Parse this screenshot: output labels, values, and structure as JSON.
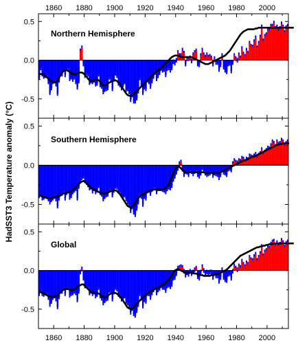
{
  "chart_data": {
    "type": "bar",
    "ylabel": "HadSST3  Temperature anomaly (°C)",
    "x_ticks": [
      1860,
      1880,
      1900,
      1920,
      1940,
      1960,
      1980,
      2000
    ],
    "y_ticks": [
      -0.5,
      0.0,
      0.5
    ],
    "xlim": [
      1850,
      2014
    ],
    "ylim": [
      -0.75,
      0.6
    ],
    "colors": {
      "positive": "#ff0000",
      "negative": "#0000ff",
      "smooth": "#000000",
      "uncertainty": "#0000ff"
    },
    "years_start": 1850,
    "panels": [
      {
        "title": "Northern Hemisphere",
        "annual_anomaly": [
          -0.22,
          -0.1,
          -0.18,
          -0.21,
          -0.2,
          -0.19,
          -0.28,
          -0.42,
          -0.36,
          -0.28,
          -0.26,
          -0.31,
          -0.43,
          -0.26,
          -0.18,
          -0.18,
          -0.12,
          -0.19,
          -0.1,
          -0.1,
          -0.24,
          -0.22,
          -0.25,
          -0.22,
          -0.28,
          -0.35,
          -0.27,
          0.12,
          0.16,
          -0.05,
          -0.2,
          -0.16,
          -0.18,
          -0.29,
          -0.27,
          -0.28,
          -0.26,
          -0.31,
          -0.3,
          -0.18,
          -0.32,
          -0.34,
          -0.41,
          -0.38,
          -0.37,
          -0.36,
          -0.22,
          -0.24,
          -0.37,
          -0.25,
          -0.17,
          -0.2,
          -0.3,
          -0.32,
          -0.36,
          -0.32,
          -0.28,
          -0.38,
          -0.37,
          -0.41,
          -0.51,
          -0.45,
          -0.53,
          -0.53,
          -0.49,
          -0.4,
          -0.23,
          -0.32,
          -0.42,
          -0.35,
          -0.37,
          -0.26,
          -0.28,
          -0.34,
          -0.27,
          -0.21,
          -0.16,
          -0.24,
          -0.2,
          -0.16,
          -0.11,
          -0.13,
          -0.12,
          -0.19,
          -0.11,
          -0.1,
          -0.13,
          -0.1,
          -0.02,
          -0.04,
          0.0,
          0.1,
          0.06,
          0.06,
          0.13,
          0.09,
          -0.05,
          0.02,
          0.02,
          0.03,
          -0.01,
          0.07,
          0.1,
          0.12,
          -0.05,
          -0.06,
          0.06,
          0.13,
          0.07,
          0.04,
          0.07,
          0.04,
          0.05,
          0.03,
          -0.05,
          0.02,
          -0.03,
          -0.03,
          -0.12,
          -0.06,
          0.06,
          -0.09,
          -0.13,
          -0.15,
          -0.05,
          -0.04,
          -0.14,
          -0.03,
          0.06,
          0.02,
          0.0,
          0.07,
          0.03,
          0.15,
          0.08,
          0.05,
          0.13,
          0.09,
          0.22,
          0.18,
          0.17,
          0.24,
          0.29,
          0.16,
          0.22,
          0.3,
          0.43,
          0.25,
          0.31,
          0.33,
          0.39,
          0.38,
          0.44,
          0.44,
          0.48,
          0.41,
          0.43,
          0.38,
          0.41,
          0.47,
          0.43,
          0.36,
          0.42,
          0.44
        ],
        "smoothed": [
          -0.18,
          -0.18,
          -0.18,
          -0.19,
          -0.21,
          -0.22,
          -0.24,
          -0.26,
          -0.27,
          -0.28,
          -0.29,
          -0.28,
          -0.26,
          -0.23,
          -0.19,
          -0.16,
          -0.14,
          -0.13,
          -0.13,
          -0.14,
          -0.15,
          -0.17,
          -0.18,
          -0.18,
          -0.18,
          -0.17,
          -0.16,
          -0.16,
          -0.16,
          -0.17,
          -0.19,
          -0.21,
          -0.24,
          -0.26,
          -0.27,
          -0.27,
          -0.26,
          -0.25,
          -0.25,
          -0.26,
          -0.28,
          -0.31,
          -0.33,
          -0.33,
          -0.32,
          -0.3,
          -0.29,
          -0.28,
          -0.27,
          -0.26,
          -0.26,
          -0.27,
          -0.29,
          -0.31,
          -0.34,
          -0.37,
          -0.4,
          -0.43,
          -0.45,
          -0.46,
          -0.46,
          -0.45,
          -0.44,
          -0.42,
          -0.4,
          -0.38,
          -0.36,
          -0.34,
          -0.32,
          -0.3,
          -0.28,
          -0.26,
          -0.24,
          -0.22,
          -0.2,
          -0.18,
          -0.16,
          -0.14,
          -0.13,
          -0.12,
          -0.1,
          -0.08,
          -0.06,
          -0.04,
          -0.02,
          0.0,
          0.02,
          0.04,
          0.05,
          0.06,
          0.06,
          0.06,
          0.05,
          0.04,
          0.04,
          0.04,
          0.04,
          0.04,
          0.04,
          0.04,
          0.04,
          0.03,
          0.02,
          0.01,
          0.0,
          -0.01,
          -0.02,
          -0.03,
          -0.04,
          -0.05,
          -0.05,
          -0.05,
          -0.04,
          -0.03,
          -0.02,
          -0.01,
          0.0,
          0.01,
          0.02,
          0.03,
          0.04,
          0.05,
          0.06,
          0.08,
          0.1,
          0.12,
          0.15,
          0.18,
          0.21,
          0.24,
          0.27,
          0.3,
          0.33,
          0.35,
          0.37,
          0.38,
          0.39,
          0.4,
          0.4,
          0.4,
          0.4,
          0.4,
          0.41,
          0.41,
          0.42,
          0.42,
          0.42,
          0.42,
          0.42,
          0.42,
          0.42,
          0.42,
          0.42,
          0.42,
          0.42,
          0.42,
          0.42,
          0.42,
          0.42,
          0.42,
          0.42,
          0.42,
          0.42,
          0.42,
          0.42,
          0.42,
          0.42,
          0.42
        ]
      },
      {
        "title": "Southern Hemisphere",
        "annual_anomaly": [
          -0.39,
          -0.37,
          -0.42,
          -0.41,
          -0.38,
          -0.4,
          -0.43,
          -0.47,
          -0.44,
          -0.42,
          -0.4,
          -0.43,
          -0.52,
          -0.42,
          -0.37,
          -0.36,
          -0.33,
          -0.42,
          -0.35,
          -0.33,
          -0.41,
          -0.39,
          -0.34,
          -0.32,
          -0.3,
          -0.42,
          -0.27,
          -0.2,
          -0.16,
          -0.14,
          -0.2,
          -0.22,
          -0.25,
          -0.29,
          -0.28,
          -0.33,
          -0.3,
          -0.34,
          -0.32,
          -0.26,
          -0.35,
          -0.37,
          -0.43,
          -0.4,
          -0.38,
          -0.37,
          -0.3,
          -0.31,
          -0.38,
          -0.32,
          -0.27,
          -0.28,
          -0.33,
          -0.34,
          -0.38,
          -0.4,
          -0.38,
          -0.43,
          -0.47,
          -0.51,
          -0.58,
          -0.53,
          -0.6,
          -0.63,
          -0.55,
          -0.47,
          -0.36,
          -0.4,
          -0.5,
          -0.4,
          -0.42,
          -0.33,
          -0.32,
          -0.36,
          -0.31,
          -0.28,
          -0.28,
          -0.34,
          -0.3,
          -0.3,
          -0.3,
          -0.31,
          -0.32,
          -0.34,
          -0.3,
          -0.28,
          -0.29,
          -0.26,
          -0.18,
          -0.14,
          -0.09,
          -0.04,
          0.02,
          0.04,
          -0.05,
          -0.12,
          -0.08,
          -0.09,
          -0.12,
          -0.06,
          -0.08,
          -0.11,
          -0.08,
          -0.06,
          -0.12,
          -0.14,
          -0.1,
          -0.03,
          -0.07,
          -0.1,
          -0.12,
          -0.11,
          -0.1,
          -0.08,
          -0.13,
          -0.1,
          -0.11,
          -0.12,
          -0.16,
          -0.12,
          -0.04,
          -0.09,
          -0.1,
          -0.12,
          -0.05,
          -0.04,
          -0.06,
          0.02,
          0.06,
          0.04,
          0.03,
          0.06,
          0.05,
          0.09,
          0.08,
          0.05,
          0.08,
          0.07,
          0.12,
          0.11,
          0.1,
          0.12,
          0.14,
          0.1,
          0.13,
          0.15,
          0.2,
          0.14,
          0.17,
          0.19,
          0.22,
          0.21,
          0.25,
          0.3,
          0.28,
          0.24,
          0.3,
          0.27,
          0.28,
          0.32,
          0.3,
          0.25,
          0.28,
          0.3
        ],
        "smoothed": [
          -0.38,
          -0.39,
          -0.4,
          -0.41,
          -0.41,
          -0.42,
          -0.42,
          -0.42,
          -0.42,
          -0.41,
          -0.41,
          -0.4,
          -0.4,
          -0.39,
          -0.38,
          -0.37,
          -0.36,
          -0.36,
          -0.35,
          -0.35,
          -0.34,
          -0.33,
          -0.32,
          -0.3,
          -0.28,
          -0.26,
          -0.24,
          -0.22,
          -0.21,
          -0.2,
          -0.21,
          -0.23,
          -0.25,
          -0.27,
          -0.29,
          -0.3,
          -0.31,
          -0.32,
          -0.33,
          -0.34,
          -0.35,
          -0.36,
          -0.36,
          -0.36,
          -0.36,
          -0.35,
          -0.34,
          -0.33,
          -0.33,
          -0.32,
          -0.32,
          -0.33,
          -0.35,
          -0.37,
          -0.4,
          -0.43,
          -0.46,
          -0.49,
          -0.52,
          -0.53,
          -0.54,
          -0.53,
          -0.51,
          -0.48,
          -0.45,
          -0.42,
          -0.4,
          -0.38,
          -0.37,
          -0.36,
          -0.35,
          -0.34,
          -0.33,
          -0.32,
          -0.32,
          -0.31,
          -0.31,
          -0.31,
          -0.31,
          -0.31,
          -0.31,
          -0.31,
          -0.3,
          -0.29,
          -0.27,
          -0.24,
          -0.2,
          -0.15,
          -0.1,
          -0.06,
          -0.03,
          -0.02,
          -0.02,
          -0.04,
          -0.06,
          -0.08,
          -0.09,
          -0.09,
          -0.09,
          -0.09,
          -0.09,
          -0.09,
          -0.09,
          -0.09,
          -0.09,
          -0.09,
          -0.09,
          -0.09,
          -0.09,
          -0.1,
          -0.1,
          -0.1,
          -0.1,
          -0.1,
          -0.1,
          -0.1,
          -0.1,
          -0.1,
          -0.1,
          -0.09,
          -0.08,
          -0.07,
          -0.06,
          -0.05,
          -0.04,
          -0.03,
          -0.02,
          -0.01,
          0.0,
          0.01,
          0.02,
          0.03,
          0.04,
          0.05,
          0.06,
          0.06,
          0.07,
          0.08,
          0.09,
          0.1,
          0.11,
          0.11,
          0.12,
          0.13,
          0.14,
          0.15,
          0.16,
          0.17,
          0.18,
          0.19,
          0.2,
          0.21,
          0.22,
          0.23,
          0.24,
          0.25,
          0.26,
          0.26,
          0.27,
          0.27,
          0.28,
          0.28,
          0.28,
          0.28,
          0.28
        ]
      },
      {
        "title": "Global",
        "annual_anomaly": [
          -0.3,
          -0.24,
          -0.3,
          -0.31,
          -0.29,
          -0.29,
          -0.35,
          -0.44,
          -0.4,
          -0.35,
          -0.33,
          -0.37,
          -0.47,
          -0.34,
          -0.27,
          -0.27,
          -0.23,
          -0.3,
          -0.22,
          -0.22,
          -0.32,
          -0.3,
          -0.29,
          -0.27,
          -0.29,
          -0.38,
          -0.27,
          -0.02,
          0.02,
          -0.1,
          -0.2,
          -0.19,
          -0.21,
          -0.29,
          -0.27,
          -0.3,
          -0.28,
          -0.33,
          -0.31,
          -0.22,
          -0.33,
          -0.36,
          -0.42,
          -0.39,
          -0.37,
          -0.36,
          -0.26,
          -0.28,
          -0.37,
          -0.28,
          -0.22,
          -0.24,
          -0.31,
          -0.33,
          -0.37,
          -0.36,
          -0.33,
          -0.4,
          -0.42,
          -0.46,
          -0.54,
          -0.49,
          -0.56,
          -0.58,
          -0.52,
          -0.44,
          -0.3,
          -0.36,
          -0.46,
          -0.38,
          -0.4,
          -0.3,
          -0.3,
          -0.35,
          -0.29,
          -0.25,
          -0.22,
          -0.29,
          -0.25,
          -0.23,
          -0.2,
          -0.22,
          -0.22,
          -0.26,
          -0.2,
          -0.19,
          -0.21,
          -0.18,
          -0.1,
          -0.09,
          -0.04,
          0.03,
          0.04,
          0.05,
          0.04,
          -0.01,
          -0.06,
          -0.03,
          -0.05,
          -0.01,
          -0.04,
          -0.02,
          0.01,
          0.03,
          -0.08,
          -0.1,
          -0.02,
          0.05,
          0.0,
          -0.03,
          -0.02,
          -0.04,
          -0.02,
          -0.02,
          -0.09,
          -0.04,
          -0.07,
          -0.07,
          -0.14,
          -0.09,
          0.01,
          -0.09,
          -0.12,
          -0.13,
          -0.05,
          -0.04,
          -0.1,
          -0.01,
          0.06,
          0.03,
          0.01,
          0.06,
          0.04,
          0.12,
          0.08,
          0.05,
          0.1,
          0.08,
          0.17,
          0.14,
          0.13,
          0.18,
          0.21,
          0.13,
          0.17,
          0.22,
          0.31,
          0.19,
          0.24,
          0.26,
          0.3,
          0.29,
          0.34,
          0.37,
          0.38,
          0.32,
          0.36,
          0.32,
          0.34,
          0.39,
          0.36,
          0.3,
          0.35,
          0.37
        ],
        "smoothed": [
          -0.28,
          -0.28,
          -0.29,
          -0.3,
          -0.31,
          -0.32,
          -0.33,
          -0.34,
          -0.34,
          -0.34,
          -0.34,
          -0.33,
          -0.32,
          -0.3,
          -0.28,
          -0.26,
          -0.25,
          -0.24,
          -0.24,
          -0.24,
          -0.25,
          -0.25,
          -0.25,
          -0.24,
          -0.23,
          -0.21,
          -0.2,
          -0.19,
          -0.18,
          -0.18,
          -0.2,
          -0.22,
          -0.24,
          -0.26,
          -0.28,
          -0.29,
          -0.29,
          -0.29,
          -0.29,
          -0.3,
          -0.31,
          -0.33,
          -0.34,
          -0.35,
          -0.34,
          -0.33,
          -0.31,
          -0.3,
          -0.29,
          -0.29,
          -0.29,
          -0.3,
          -0.32,
          -0.34,
          -0.36,
          -0.39,
          -0.42,
          -0.45,
          -0.48,
          -0.49,
          -0.5,
          -0.49,
          -0.48,
          -0.45,
          -0.43,
          -0.41,
          -0.39,
          -0.37,
          -0.35,
          -0.33,
          -0.31,
          -0.3,
          -0.28,
          -0.27,
          -0.26,
          -0.25,
          -0.24,
          -0.23,
          -0.22,
          -0.21,
          -0.2,
          -0.19,
          -0.18,
          -0.16,
          -0.14,
          -0.12,
          -0.09,
          -0.06,
          -0.03,
          0.0,
          0.01,
          0.02,
          0.01,
          0.0,
          -0.01,
          -0.02,
          -0.03,
          -0.03,
          -0.03,
          -0.03,
          -0.03,
          -0.03,
          -0.04,
          -0.04,
          -0.05,
          -0.05,
          -0.06,
          -0.06,
          -0.07,
          -0.07,
          -0.07,
          -0.07,
          -0.07,
          -0.06,
          -0.06,
          -0.05,
          -0.05,
          -0.04,
          -0.04,
          -0.03,
          -0.02,
          -0.01,
          0.0,
          0.01,
          0.03,
          0.05,
          0.07,
          0.09,
          0.11,
          0.13,
          0.15,
          0.17,
          0.19,
          0.2,
          0.21,
          0.22,
          0.23,
          0.24,
          0.25,
          0.26,
          0.27,
          0.28,
          0.29,
          0.3,
          0.3,
          0.31,
          0.31,
          0.32,
          0.32,
          0.33,
          0.33,
          0.34,
          0.34,
          0.34,
          0.35,
          0.35,
          0.35,
          0.35,
          0.35,
          0.35,
          0.35,
          0.35,
          0.35,
          0.35,
          0.35,
          0.35,
          0.35,
          0.35
        ]
      }
    ]
  }
}
